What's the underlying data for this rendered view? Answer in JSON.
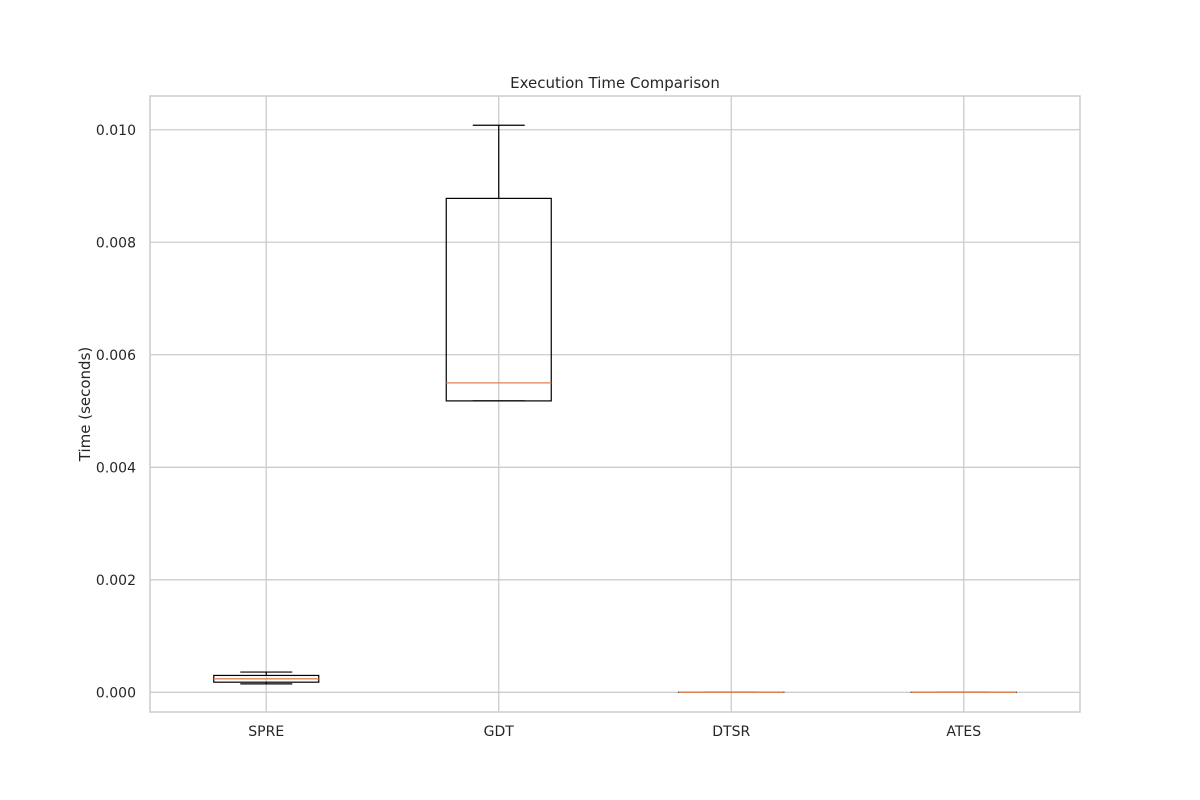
{
  "chart_data": {
    "type": "box",
    "title": "Execution Time Comparison",
    "xlabel": "",
    "ylabel": "Time (seconds)",
    "ylim": [
      -0.00035,
      0.0106
    ],
    "yticks": [
      0.0,
      0.002,
      0.004,
      0.006,
      0.008,
      0.01
    ],
    "ytick_labels": [
      "0.000",
      "0.002",
      "0.004",
      "0.006",
      "0.008",
      "0.010"
    ],
    "grid": true,
    "categories": [
      "SPRE",
      "GDT",
      "DTSR",
      "ATES"
    ],
    "boxes": [
      {
        "category": "SPRE",
        "whisker_low": 0.00015,
        "q1": 0.00018,
        "median": 0.00024,
        "q3": 0.0003,
        "whisker_high": 0.00036
      },
      {
        "category": "GDT",
        "whisker_low": 0.00518,
        "q1": 0.00518,
        "median": 0.0055,
        "q3": 0.00878,
        "whisker_high": 0.01008
      },
      {
        "category": "DTSR",
        "whisker_low": 0.0,
        "q1": 0.0,
        "median": 0.0,
        "q3": 0.0,
        "whisker_high": 0.0
      },
      {
        "category": "ATES",
        "whisker_low": 0.0,
        "q1": 0.0,
        "median": 0.0,
        "q3": 0.0,
        "whisker_high": 0.0
      }
    ],
    "colors": {
      "box": "#000000",
      "median": "#dd8452",
      "grid": "#cccccc",
      "frame": "#cccccc"
    }
  }
}
